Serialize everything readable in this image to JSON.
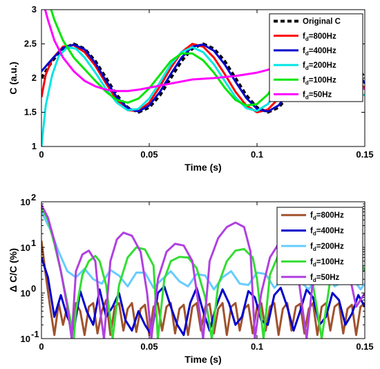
{
  "chart_data": [
    {
      "type": "line",
      "xlabel": "Time (s)",
      "ylabel": "C (a.u.)",
      "xlim": [
        0,
        0.15
      ],
      "ylim": [
        1,
        3
      ],
      "xticks": [
        "0",
        "0.05",
        "0.1",
        "0.15"
      ],
      "yticks": [
        "1",
        "1.5",
        "2",
        "2.5",
        "3"
      ],
      "grid": false,
      "legend_position": "top-right",
      "series": [
        {
          "name": "Original C",
          "fd": "",
          "color": "#000000",
          "dashed": true,
          "x": [
            0,
            0.005,
            0.01,
            0.015,
            0.02,
            0.025,
            0.03,
            0.035,
            0.04,
            0.045,
            0.05,
            0.055,
            0.06,
            0.065,
            0.07,
            0.075,
            0.08,
            0.085,
            0.09,
            0.095,
            0.1,
            0.105,
            0.11,
            0.115,
            0.12,
            0.125,
            0.13,
            0.135,
            0.14,
            0.145,
            0.15
          ],
          "y": [
            2.0,
            2.25,
            2.43,
            2.5,
            2.43,
            2.25,
            2.0,
            1.75,
            1.57,
            1.5,
            1.57,
            1.75,
            2.0,
            2.25,
            2.43,
            2.5,
            2.43,
            2.25,
            2.0,
            1.75,
            1.57,
            1.5,
            1.57,
            1.75,
            2.0,
            2.25,
            2.43,
            2.5,
            2.43,
            2.25,
            2.0
          ]
        },
        {
          "name": "f",
          "fd": "d",
          "suffix": "=800Hz",
          "color": "#ff0000",
          "x": [
            0,
            0.002,
            0.005,
            0.01,
            0.015,
            0.02,
            0.025,
            0.03,
            0.035,
            0.04,
            0.045,
            0.05,
            0.055,
            0.06,
            0.065,
            0.07,
            0.075,
            0.08,
            0.085,
            0.09,
            0.095,
            0.1,
            0.105,
            0.11,
            0.115,
            0.12,
            0.125,
            0.13,
            0.135,
            0.14,
            0.145,
            0.15
          ],
          "y": [
            1.72,
            2.05,
            2.28,
            2.46,
            2.48,
            2.38,
            2.18,
            1.92,
            1.68,
            1.53,
            1.52,
            1.64,
            1.88,
            2.15,
            2.38,
            2.5,
            2.46,
            2.3,
            2.06,
            1.8,
            1.6,
            1.5,
            1.54,
            1.7,
            1.95,
            2.2,
            2.4,
            2.5,
            2.45,
            2.28,
            2.03,
            1.85
          ]
        },
        {
          "name": "f",
          "fd": "d",
          "suffix": "=400Hz",
          "color": "#0000cc",
          "x": [
            0,
            0.005,
            0.01,
            0.015,
            0.02,
            0.025,
            0.03,
            0.035,
            0.04,
            0.045,
            0.05,
            0.055,
            0.06,
            0.065,
            0.07,
            0.075,
            0.08,
            0.085,
            0.09,
            0.095,
            0.1,
            0.105,
            0.11,
            0.115,
            0.12,
            0.125,
            0.13,
            0.135,
            0.14,
            0.145,
            0.15
          ],
          "y": [
            2.1,
            2.28,
            2.44,
            2.49,
            2.42,
            2.22,
            1.96,
            1.72,
            1.56,
            1.51,
            1.6,
            1.8,
            2.06,
            2.3,
            2.46,
            2.49,
            2.4,
            2.2,
            1.95,
            1.71,
            1.55,
            1.51,
            1.6,
            1.8,
            2.05,
            2.3,
            2.45,
            2.48,
            2.38,
            2.17,
            1.92
          ]
        },
        {
          "name": "f",
          "fd": "d",
          "suffix": "=200Hz",
          "color": "#00e5e5",
          "x": [
            0,
            0.002,
            0.005,
            0.008,
            0.012,
            0.016,
            0.02,
            0.025,
            0.03,
            0.035,
            0.04,
            0.045,
            0.05,
            0.055,
            0.06,
            0.065,
            0.07,
            0.075,
            0.08,
            0.085,
            0.09,
            0.095,
            0.1,
            0.105,
            0.11,
            0.115,
            0.12,
            0.125,
            0.13,
            0.135,
            0.14,
            0.145,
            0.15
          ],
          "y": [
            1.0,
            1.6,
            2.05,
            2.32,
            2.45,
            2.43,
            2.3,
            2.08,
            1.84,
            1.64,
            1.53,
            1.55,
            1.7,
            1.94,
            2.2,
            2.38,
            2.45,
            2.38,
            2.2,
            1.96,
            1.72,
            1.56,
            1.52,
            1.62,
            1.84,
            2.1,
            2.32,
            2.44,
            2.42,
            2.26,
            2.02,
            1.8,
            1.75
          ]
        },
        {
          "name": "f",
          "fd": "d",
          "suffix": "=100Hz",
          "color": "#00e600",
          "x": [
            0,
            0.003,
            0.006,
            0.01,
            0.015,
            0.02,
            0.025,
            0.03,
            0.035,
            0.04,
            0.045,
            0.05,
            0.055,
            0.06,
            0.065,
            0.07,
            0.075,
            0.08,
            0.085,
            0.09,
            0.095,
            0.1,
            0.105,
            0.11,
            0.115,
            0.12,
            0.125,
            0.13,
            0.135,
            0.14,
            0.145,
            0.15
          ],
          "y": [
            3.6,
            3.15,
            2.85,
            2.55,
            2.3,
            2.13,
            1.96,
            1.8,
            1.68,
            1.64,
            1.7,
            1.85,
            2.05,
            2.25,
            2.36,
            2.36,
            2.26,
            2.08,
            1.86,
            1.68,
            1.6,
            1.62,
            1.76,
            1.98,
            2.2,
            2.35,
            2.38,
            2.28,
            2.1,
            1.9,
            1.8,
            1.85
          ]
        },
        {
          "name": "f",
          "fd": "d",
          "suffix": "=50Hz",
          "color": "#ff00ff",
          "x": [
            0,
            0.003,
            0.006,
            0.01,
            0.015,
            0.02,
            0.025,
            0.03,
            0.035,
            0.04,
            0.045,
            0.05,
            0.06,
            0.07,
            0.08,
            0.09,
            0.1,
            0.105,
            0.11,
            0.115,
            0.12,
            0.125,
            0.13,
            0.135,
            0.14,
            0.145,
            0.15
          ],
          "y": [
            3.2,
            2.85,
            2.55,
            2.3,
            2.1,
            1.96,
            1.88,
            1.83,
            1.81,
            1.81,
            1.83,
            1.86,
            1.92,
            1.98,
            2.0,
            2.03,
            2.08,
            2.12,
            2.17,
            2.2,
            2.2,
            2.14,
            2.04,
            1.93,
            1.85,
            1.82,
            1.85
          ]
        }
      ]
    },
    {
      "type": "line",
      "xlabel": "Time (s)",
      "ylabel": "Δ C/C (%)",
      "xlim": [
        0,
        0.15
      ],
      "ylim": [
        0.1,
        100
      ],
      "yscale": "log",
      "xticks": [
        "0",
        "0.05",
        "0.1",
        "0.15"
      ],
      "yticks": [
        {
          "base": "10",
          "exp": "-1"
        },
        {
          "base": "10",
          "exp": "0"
        },
        {
          "base": "10",
          "exp": "1"
        },
        {
          "base": "10",
          "exp": "2"
        }
      ],
      "grid": false,
      "legend_position": "top-right",
      "series": [
        {
          "name": "f",
          "fd": "d",
          "suffix": "=800Hz",
          "color": "#a0522d",
          "x": [
            0,
            0.002,
            0.004,
            0.006,
            0.008,
            0.01,
            0.012,
            0.014,
            0.016,
            0.018,
            0.02,
            0.022,
            0.024,
            0.026,
            0.028,
            0.03,
            0.032,
            0.034,
            0.036,
            0.038,
            0.04,
            0.042,
            0.044,
            0.046,
            0.048,
            0.05,
            0.052,
            0.054,
            0.056,
            0.058,
            0.06,
            0.062,
            0.064,
            0.066,
            0.068,
            0.07,
            0.072,
            0.074,
            0.076,
            0.078,
            0.08,
            0.082,
            0.084,
            0.086,
            0.088,
            0.09,
            0.092,
            0.094,
            0.096,
            0.098,
            0.1,
            0.102,
            0.104,
            0.106,
            0.108,
            0.11,
            0.112,
            0.114,
            0.116,
            0.118,
            0.12,
            0.122,
            0.124,
            0.126,
            0.128,
            0.13,
            0.132,
            0.134,
            0.136,
            0.138,
            0.14,
            0.142,
            0.144,
            0.146,
            0.148,
            0.15
          ],
          "y": [
            14,
            2.5,
            0.5,
            0.12,
            0.6,
            0.2,
            0.5,
            0.15,
            0.6,
            0.4,
            0.12,
            0.5,
            0.6,
            0.13,
            0.4,
            0.7,
            0.12,
            0.5,
            0.6,
            0.15,
            0.45,
            0.6,
            0.14,
            0.45,
            0.55,
            0.12,
            0.5,
            0.6,
            0.15,
            0.5,
            0.6,
            0.13,
            0.45,
            0.55,
            0.12,
            0.5,
            0.6,
            0.15,
            0.5,
            0.58,
            0.13,
            0.45,
            0.6,
            0.12,
            0.5,
            0.6,
            0.15,
            0.45,
            0.55,
            0.13,
            0.5,
            0.6,
            0.15,
            0.5,
            0.6,
            0.12,
            0.45,
            0.6,
            0.15,
            0.5,
            0.58,
            0.13,
            0.45,
            0.6,
            0.12,
            0.5,
            0.6,
            0.15,
            0.5,
            0.6,
            0.13,
            0.45,
            0.55,
            0.12,
            0.5,
            0.6
          ]
        },
        {
          "name": "f",
          "fd": "d",
          "suffix": "=400Hz",
          "color": "#0000cc",
          "x": [
            0,
            0.003,
            0.006,
            0.009,
            0.012,
            0.015,
            0.018,
            0.021,
            0.024,
            0.027,
            0.03,
            0.033,
            0.036,
            0.039,
            0.042,
            0.045,
            0.048,
            0.051,
            0.054,
            0.057,
            0.06,
            0.063,
            0.066,
            0.069,
            0.072,
            0.075,
            0.078,
            0.081,
            0.084,
            0.087,
            0.09,
            0.093,
            0.096,
            0.099,
            0.102,
            0.105,
            0.108,
            0.111,
            0.114,
            0.117,
            0.12,
            0.123,
            0.126,
            0.129,
            0.132,
            0.135,
            0.138,
            0.141,
            0.144,
            0.147,
            0.15
          ],
          "y": [
            6,
            2.2,
            0.3,
            0.9,
            0.3,
            0.15,
            1.1,
            0.4,
            0.2,
            1.2,
            0.3,
            0.5,
            1.0,
            0.25,
            0.15,
            0.4,
            0.2,
            0.12,
            1.0,
            1.4,
            0.5,
            0.2,
            0.12,
            0.6,
            1.3,
            0.4,
            0.15,
            0.5,
            1.2,
            0.6,
            0.2,
            0.3,
            1.1,
            0.8,
            0.25,
            0.2,
            0.9,
            1.3,
            0.5,
            0.15,
            0.4,
            1.2,
            0.8,
            0.2,
            0.3,
            1.0,
            0.7,
            0.2,
            0.35,
            0.9,
            0.5
          ]
        },
        {
          "name": "f",
          "fd": "d",
          "suffix": "=200Hz",
          "color": "#66ccff",
          "x": [
            0,
            0.004,
            0.008,
            0.012,
            0.016,
            0.02,
            0.024,
            0.028,
            0.032,
            0.036,
            0.04,
            0.044,
            0.048,
            0.052,
            0.056,
            0.06,
            0.064,
            0.068,
            0.072,
            0.076,
            0.08,
            0.084,
            0.088,
            0.092,
            0.096,
            0.1,
            0.104,
            0.108,
            0.112,
            0.116,
            0.12,
            0.124,
            0.128,
            0.132,
            0.136,
            0.14,
            0.144,
            0.148,
            0.15
          ],
          "y": [
            60,
            25,
            8,
            3,
            2.2,
            3.4,
            2.0,
            1.6,
            3.2,
            2.4,
            1.4,
            2.8,
            2.8,
            1.3,
            2.0,
            3.0,
            1.8,
            1.4,
            2.6,
            2.4,
            1.2,
            2.2,
            3.0,
            1.6,
            1.5,
            2.8,
            2.6,
            1.3,
            2.0,
            3.0,
            1.8,
            1.2,
            2.4,
            2.8,
            1.4,
            1.8,
            2.2,
            1.2,
            1.6
          ]
        },
        {
          "name": "f",
          "fd": "d",
          "suffix": "=100Hz",
          "color": "#33dd33",
          "x": [
            0,
            0.003,
            0.006,
            0.009,
            0.012,
            0.015,
            0.016,
            0.019,
            0.022,
            0.025,
            0.027,
            0.03,
            0.033,
            0.036,
            0.04,
            0.044,
            0.048,
            0.052,
            0.054,
            0.057,
            0.06,
            0.064,
            0.068,
            0.072,
            0.076,
            0.079,
            0.082,
            0.086,
            0.09,
            0.094,
            0.098,
            0.1,
            0.103,
            0.106,
            0.11,
            0.114,
            0.118,
            0.122,
            0.126,
            0.13,
            0.134,
            0.138,
            0.142,
            0.146,
            0.15
          ],
          "y": [
            75,
            40,
            12,
            3,
            0.6,
            0.1,
            0.4,
            2.5,
            5,
            6.5,
            5,
            1.5,
            0.1,
            1.5,
            6,
            10,
            9,
            4,
            0.1,
            2,
            5,
            6.2,
            6,
            3.5,
            0.8,
            0.1,
            1.5,
            5,
            8.5,
            9.2,
            6,
            2,
            0.1,
            2.5,
            7,
            9.5,
            9,
            6,
            1.5,
            0.1,
            2,
            6,
            8.5,
            7.5,
            3
          ]
        },
        {
          "name": "f",
          "fd": "d",
          "suffix": "=50Hz",
          "color": "#b040e0",
          "x": [
            0,
            0.003,
            0.006,
            0.009,
            0.012,
            0.014,
            0.016,
            0.019,
            0.022,
            0.025,
            0.027,
            0.029,
            0.032,
            0.035,
            0.038,
            0.042,
            0.046,
            0.049,
            0.051,
            0.054,
            0.058,
            0.062,
            0.066,
            0.07,
            0.073,
            0.075,
            0.078,
            0.082,
            0.086,
            0.09,
            0.094,
            0.097,
            0.099,
            0.102,
            0.106,
            0.11,
            0.114,
            0.118,
            0.121,
            0.123,
            0.126,
            0.13,
            0.134,
            0.138,
            0.142,
            0.146,
            0.15
          ],
          "y": [
            85,
            45,
            14,
            3,
            0.5,
            0.1,
            3,
            7,
            8.5,
            5,
            0.5,
            0.1,
            5,
            15,
            21,
            18,
            8,
            1,
            0.1,
            2,
            8,
            12,
            11,
            5,
            0.5,
            0.1,
            5,
            16,
            28,
            35,
            28,
            8,
            0.1,
            1,
            6,
            12,
            14,
            6,
            0.5,
            0.1,
            2,
            8,
            12,
            10,
            4,
            0.5,
            1
          ]
        }
      ]
    }
  ]
}
